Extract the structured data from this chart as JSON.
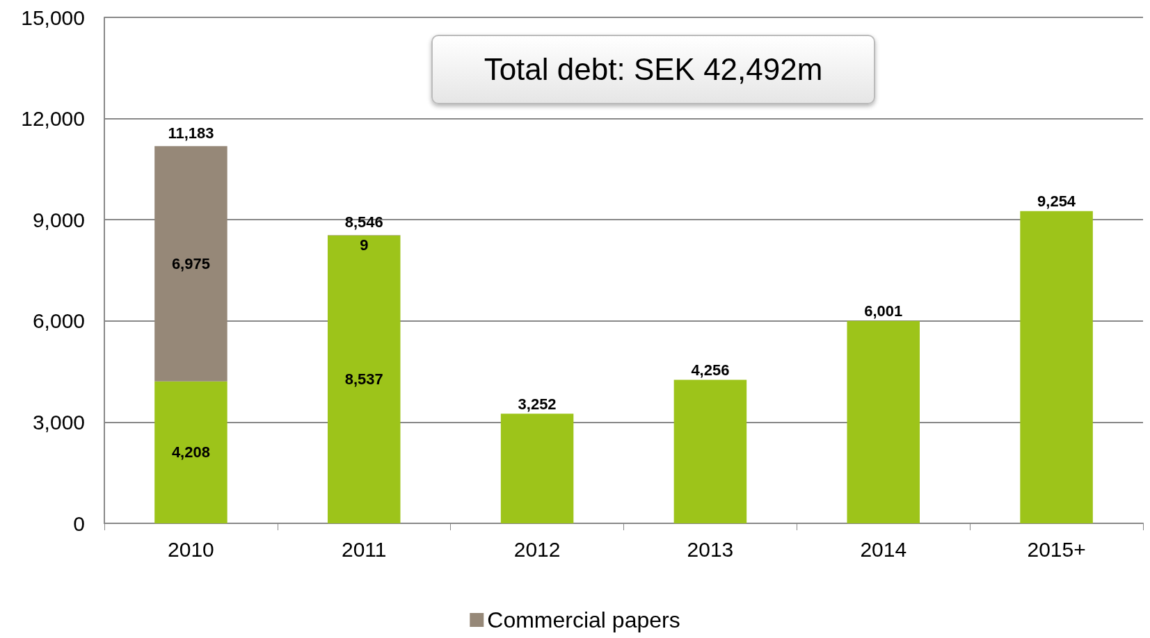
{
  "chart_data": {
    "type": "bar",
    "stacked": true,
    "categories": [
      "2010",
      "2011",
      "2012",
      "2013",
      "2014",
      "2015+"
    ],
    "series": [
      {
        "color": "#9dc41a",
        "values": [
          4208,
          8537,
          3252,
          4256,
          6001,
          9254
        ],
        "value_labels": [
          "4,208",
          "8,537",
          "3,252",
          "4,256",
          "6,001",
          "9,254"
        ]
      },
      {
        "name": "Commercial papers",
        "color": "#968878",
        "values": [
          6975,
          9,
          null,
          null,
          null,
          null
        ],
        "value_labels": [
          "6,975",
          "9",
          null,
          null,
          null,
          null
        ]
      }
    ],
    "totals": [
      "11,183",
      "8,546",
      null,
      null,
      null,
      null
    ],
    "annotations": [
      "Total debt: SEK 42,492m"
    ],
    "ylim": [
      0,
      15000
    ],
    "yticks": [
      0,
      {
        "value": 3000,
        "label": "3,000"
      },
      {
        "value": 6000,
        "label": "6,000"
      },
      {
        "value": 9000,
        "label": "9,000"
      },
      {
        "value": 12000,
        "label": "12,000"
      },
      {
        "value": 15000,
        "label": "15,000"
      }
    ],
    "grid": "y",
    "legend": "bottom"
  }
}
